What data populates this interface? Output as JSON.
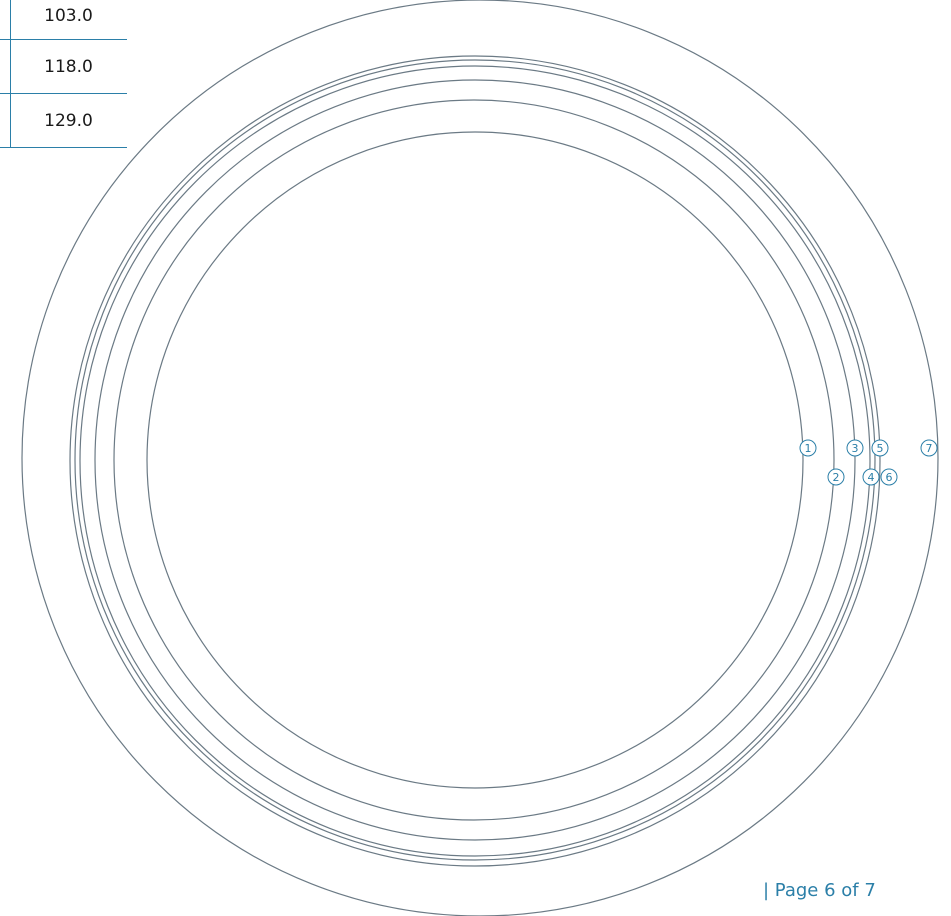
{
  "size_table": {
    "rows": [
      {
        "value": "103.0"
      },
      {
        "value": "118.0"
      },
      {
        "value": "129.0"
      }
    ]
  },
  "rings": [
    {
      "label": "1"
    },
    {
      "label": "2"
    },
    {
      "label": "3"
    },
    {
      "label": "4"
    },
    {
      "label": "5"
    },
    {
      "label": "6"
    },
    {
      "label": "7"
    }
  ],
  "footer": {
    "page_text": "| Page 6 of 7"
  },
  "colors": {
    "accent": "#2b7fa8",
    "ring_stroke": "#6b7a85"
  }
}
